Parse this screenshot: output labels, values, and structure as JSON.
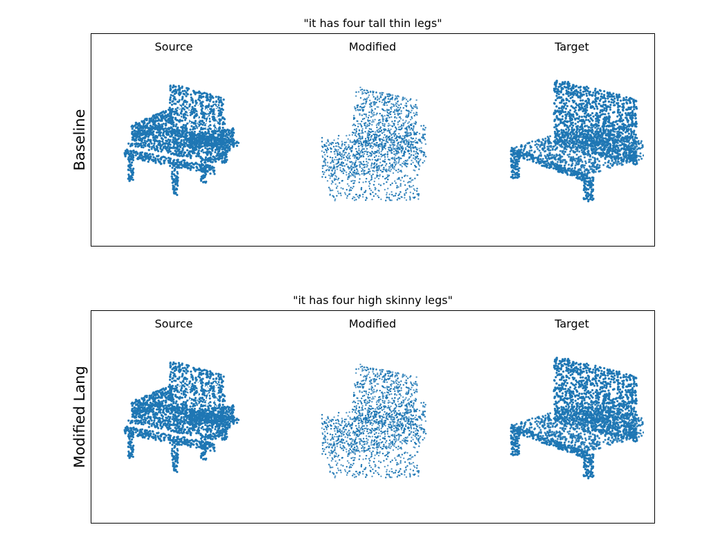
{
  "panels": [
    {
      "title": "\"it has four tall thin legs\"",
      "row_label": "Baseline",
      "columns": [
        "Source",
        "Modified",
        "Target"
      ]
    },
    {
      "title": "\"it has four high skinny legs\"",
      "row_label": "Modified Lang",
      "columns": [
        "Source",
        "Modified",
        "Target"
      ]
    }
  ],
  "colors": {
    "points": "#1f77b4"
  }
}
